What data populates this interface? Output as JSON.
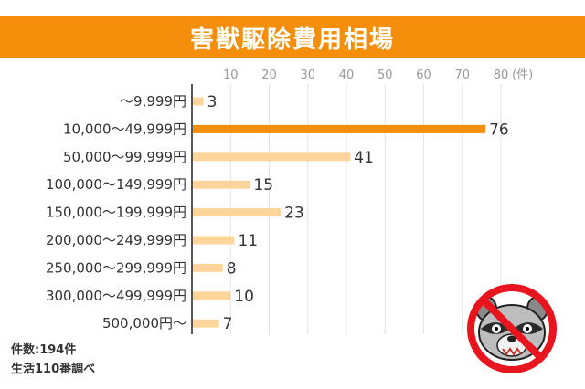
{
  "header": {
    "title": "害獣駆除費用相場"
  },
  "chart_data": {
    "type": "bar",
    "orientation": "horizontal",
    "title": "害獣駆除費用相場",
    "categories": [
      "〜9,999円",
      "10,000〜49,999円",
      "50,000〜99,999円",
      "100,000〜149,999円",
      "150,000〜199,999円",
      "200,000〜249,999円",
      "250,000〜299,999円",
      "300,000〜499,999円",
      "500,000円〜"
    ],
    "values": [
      3,
      76,
      41,
      15,
      23,
      11,
      8,
      10,
      7
    ],
    "xticks": [
      "10",
      "20",
      "30",
      "40",
      "50",
      "60",
      "70",
      "80"
    ],
    "xunit": "(件)",
    "xlim": [
      0,
      80
    ],
    "grid": true,
    "colors": {
      "highlight": "#f58f0b",
      "normal": "#fdd59a",
      "grid": "#e3e3e3"
    }
  },
  "footnotes": {
    "count": "件数:194件",
    "source": "生活110番調べ"
  },
  "mascot": {
    "icon": "no-raccoon-icon"
  }
}
